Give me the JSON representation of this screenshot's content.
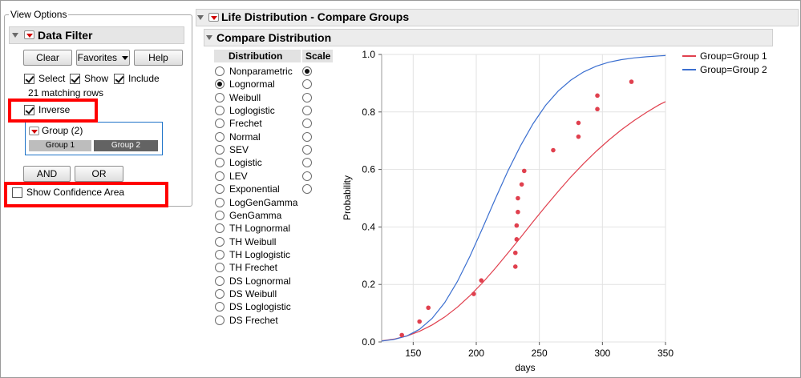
{
  "view_options": {
    "title": "View Options",
    "show_confidence_area_label": "Show Confidence Area",
    "data_filter": {
      "title": "Data Filter",
      "clear_label": "Clear",
      "favorites_label": "Favorites",
      "help_label": "Help",
      "select_label": "Select",
      "show_label": "Show",
      "include_label": "Include",
      "matching_rows": "21 matching rows",
      "inverse_label": "Inverse",
      "group_filter": {
        "title": "Group (2)",
        "options": [
          "Group 1",
          "Group 2"
        ]
      },
      "and_label": "AND",
      "or_label": "OR"
    }
  },
  "report": {
    "title": "Life Distribution - Compare Groups",
    "compare_title": "Compare Distribution",
    "distribution_header": "Distribution",
    "scale_header": "Scale",
    "distributions": [
      {
        "name": "Nonparametric",
        "selected": false,
        "scale": true
      },
      {
        "name": "Lognormal",
        "selected": true,
        "scale": false
      },
      {
        "name": "Weibull",
        "selected": false,
        "scale": false
      },
      {
        "name": "Loglogistic",
        "selected": false,
        "scale": false
      },
      {
        "name": "Frechet",
        "selected": false,
        "scale": false
      },
      {
        "name": "Normal",
        "selected": false,
        "scale": false
      },
      {
        "name": "SEV",
        "selected": false,
        "scale": false
      },
      {
        "name": "Logistic",
        "selected": false,
        "scale": false
      },
      {
        "name": "LEV",
        "selected": false,
        "scale": false
      },
      {
        "name": "Exponential",
        "selected": false,
        "scale": false
      },
      {
        "name": "LogGenGamma",
        "selected": false,
        "scale": null
      },
      {
        "name": "GenGamma",
        "selected": false,
        "scale": null
      },
      {
        "name": "TH Lognormal",
        "selected": false,
        "scale": null
      },
      {
        "name": "TH Weibull",
        "selected": false,
        "scale": null
      },
      {
        "name": "TH Loglogistic",
        "selected": false,
        "scale": null
      },
      {
        "name": "TH Frechet",
        "selected": false,
        "scale": null
      },
      {
        "name": "DS Lognormal",
        "selected": false,
        "scale": null
      },
      {
        "name": "DS Weibull",
        "selected": false,
        "scale": null
      },
      {
        "name": "DS Loglogistic",
        "selected": false,
        "scale": null
      },
      {
        "name": "DS Frechet",
        "selected": false,
        "scale": null
      }
    ]
  },
  "chart_data": {
    "type": "line",
    "xlabel": "days",
    "ylabel": "Probability",
    "xlim": [
      125,
      350
    ],
    "ylim": [
      0,
      1
    ],
    "xticks": [
      150,
      200,
      250,
      300,
      350
    ],
    "yticks": [
      "0.0",
      "0.2",
      "0.4",
      "0.6",
      "0.8",
      "1.0"
    ],
    "legend_position": "top-right",
    "series": [
      {
        "name": "Group=Group 1",
        "color": "#e0404e",
        "curve": {
          "x": [
            125,
            135,
            145,
            155,
            165,
            175,
            185,
            195,
            205,
            215,
            225,
            235,
            245,
            255,
            265,
            275,
            285,
            295,
            305,
            315,
            325,
            335,
            345,
            350
          ],
          "y": [
            0.004,
            0.01,
            0.021,
            0.037,
            0.059,
            0.087,
            0.121,
            0.161,
            0.206,
            0.256,
            0.309,
            0.363,
            0.418,
            0.472,
            0.524,
            0.574,
            0.62,
            0.663,
            0.702,
            0.738,
            0.77,
            0.799,
            0.825,
            0.836
          ]
        },
        "points": {
          "x": [
            141,
            155,
            162,
            198,
            204,
            231,
            231,
            232,
            232,
            233,
            233,
            236,
            238,
            261,
            281,
            281,
            296,
            296,
            323
          ],
          "y": [
            0.024,
            0.071,
            0.119,
            0.167,
            0.214,
            0.262,
            0.31,
            0.357,
            0.405,
            0.452,
            0.5,
            0.548,
            0.595,
            0.667,
            0.714,
            0.762,
            0.81,
            0.857,
            0.905
          ]
        }
      },
      {
        "name": "Group=Group 2",
        "color": "#3b6fd0",
        "curve": {
          "x": [
            125,
            135,
            145,
            155,
            165,
            175,
            185,
            195,
            205,
            215,
            225,
            235,
            245,
            255,
            265,
            275,
            285,
            295,
            305,
            315,
            325,
            335,
            345,
            350
          ],
          "y": [
            0.003,
            0.009,
            0.021,
            0.044,
            0.082,
            0.137,
            0.21,
            0.298,
            0.396,
            0.497,
            0.594,
            0.682,
            0.759,
            0.823,
            0.873,
            0.911,
            0.939,
            0.959,
            0.973,
            0.982,
            0.988,
            0.992,
            0.995,
            0.996
          ]
        }
      }
    ]
  }
}
